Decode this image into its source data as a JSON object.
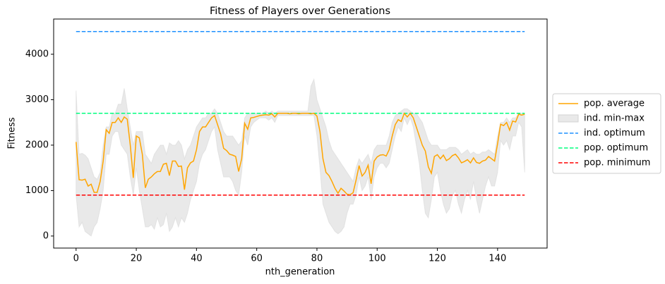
{
  "chart_data": {
    "type": "line",
    "title": "Fitness of Players over Generations",
    "x_label": "nth_generation",
    "y_label": "Fitness",
    "x": [
      0,
      1,
      2,
      3,
      4,
      5,
      6,
      7,
      8,
      9,
      10,
      11,
      12,
      13,
      14,
      15,
      16,
      17,
      18,
      19,
      20,
      21,
      22,
      23,
      24,
      25,
      26,
      27,
      28,
      29,
      30,
      31,
      32,
      33,
      34,
      35,
      36,
      37,
      38,
      39,
      40,
      41,
      42,
      43,
      44,
      45,
      46,
      47,
      48,
      49,
      50,
      51,
      52,
      53,
      54,
      55,
      56,
      57,
      58,
      59,
      60,
      61,
      62,
      63,
      64,
      65,
      66,
      67,
      68,
      69,
      70,
      71,
      72,
      73,
      74,
      75,
      76,
      77,
      78,
      79,
      80,
      81,
      82,
      83,
      84,
      85,
      86,
      87,
      88,
      89,
      90,
      91,
      92,
      93,
      94,
      95,
      96,
      97,
      98,
      99,
      100,
      101,
      102,
      103,
      104,
      105,
      106,
      107,
      108,
      109,
      110,
      111,
      112,
      113,
      114,
      115,
      116,
      117,
      118,
      119,
      120,
      121,
      122,
      123,
      124,
      125,
      126,
      127,
      128,
      129,
      130,
      131,
      132,
      133,
      134,
      135,
      136,
      137,
      138,
      139,
      140,
      141,
      142,
      143,
      144,
      145,
      146,
      147,
      148,
      149
    ],
    "series": [
      {
        "name": "pop. average",
        "kind": "line",
        "color": "#ffa500",
        "values": [
          2070,
          1240,
          1230,
          1250,
          1100,
          1140,
          960,
          960,
          1200,
          1650,
          2340,
          2260,
          2500,
          2500,
          2600,
          2500,
          2620,
          2570,
          2000,
          1280,
          2200,
          2160,
          1800,
          1060,
          1250,
          1300,
          1370,
          1420,
          1420,
          1580,
          1600,
          1330,
          1650,
          1650,
          1530,
          1540,
          1020,
          1500,
          1610,
          1650,
          1900,
          2300,
          2400,
          2400,
          2500,
          2600,
          2650,
          2450,
          2250,
          1930,
          1880,
          1800,
          1780,
          1750,
          1420,
          1700,
          2480,
          2350,
          2600,
          2610,
          2630,
          2650,
          2660,
          2670,
          2660,
          2690,
          2620,
          2700,
          2700,
          2700,
          2700,
          2690,
          2700,
          2700,
          2690,
          2700,
          2700,
          2700,
          2690,
          2700,
          2640,
          2300,
          1700,
          1400,
          1330,
          1200,
          1050,
          940,
          1050,
          990,
          920,
          910,
          950,
          1230,
          1550,
          1320,
          1400,
          1560,
          1150,
          1650,
          1740,
          1780,
          1790,
          1760,
          1900,
          2200,
          2450,
          2560,
          2520,
          2700,
          2620,
          2700,
          2600,
          2400,
          2200,
          2000,
          1870,
          1520,
          1380,
          1750,
          1790,
          1700,
          1780,
          1660,
          1700,
          1770,
          1800,
          1720,
          1610,
          1640,
          1680,
          1610,
          1720,
          1620,
          1600,
          1650,
          1670,
          1750,
          1700,
          1650,
          2030,
          2460,
          2430,
          2500,
          2330,
          2530,
          2510,
          2680,
          2660,
          2680
        ]
      },
      {
        "name": "ind. min-max",
        "kind": "band",
        "color": "#d3d3d3",
        "lower": [
          900,
          200,
          300,
          100,
          50,
          0,
          200,
          300,
          600,
          1000,
          1800,
          1800,
          2200,
          2300,
          2300,
          2000,
          1900,
          1800,
          1300,
          900,
          1500,
          1000,
          600,
          200,
          200,
          250,
          150,
          400,
          200,
          250,
          500,
          100,
          200,
          400,
          200,
          400,
          300,
          500,
          800,
          1000,
          1200,
          1600,
          1800,
          1900,
          2100,
          2300,
          2400,
          1900,
          1600,
          1300,
          1300,
          1300,
          1200,
          1000,
          900,
          1400,
          2200,
          2000,
          2400,
          2500,
          2550,
          2600,
          2600,
          2600,
          2550,
          2600,
          2500,
          2650,
          2650,
          2650,
          2650,
          2650,
          2650,
          2650,
          2650,
          2650,
          2650,
          2650,
          2650,
          2650,
          2200,
          1500,
          700,
          500,
          300,
          200,
          100,
          50,
          100,
          200,
          500,
          700,
          700,
          900,
          1300,
          1000,
          1100,
          1300,
          800,
          1300,
          1500,
          1600,
          1600,
          1500,
          1600,
          1900,
          2200,
          2400,
          2300,
          2600,
          2450,
          2600,
          2400,
          2000,
          1600,
          1000,
          500,
          400,
          800,
          1300,
          1400,
          1000,
          700,
          500,
          600,
          900,
          1000,
          700,
          500,
          800,
          1000,
          800,
          1200,
          800,
          500,
          800,
          1100,
          1300,
          1100,
          1100,
          1400,
          2100,
          2000,
          2100,
          1900,
          2200,
          2200,
          2500,
          2400,
          1400
        ],
        "upper": [
          3200,
          1800,
          1820,
          1780,
          1700,
          1500,
          1300,
          1250,
          1400,
          2000,
          2400,
          2400,
          2700,
          2700,
          2900,
          2900,
          3250,
          2800,
          2400,
          2000,
          2300,
          2300,
          2300,
          1800,
          1700,
          1600,
          1800,
          1900,
          2000,
          2000,
          1800,
          2050,
          2000,
          2000,
          2100,
          2000,
          1700,
          1900,
          2000,
          2200,
          2400,
          2500,
          2600,
          2600,
          2700,
          2700,
          2800,
          2700,
          2500,
          2300,
          2200,
          2200,
          2200,
          2100,
          2000,
          2100,
          2600,
          2700,
          2700,
          2700,
          2700,
          2700,
          2700,
          2750,
          2700,
          2750,
          2700,
          2750,
          2750,
          2750,
          2750,
          2750,
          2750,
          2750,
          2750,
          2750,
          2750,
          2750,
          3300,
          3450,
          3000,
          2800,
          2600,
          2400,
          2100,
          1900,
          1800,
          1700,
          1600,
          1500,
          1400,
          1300,
          1200,
          1500,
          1700,
          1600,
          1700,
          1800,
          1600,
          1900,
          2000,
          2000,
          2000,
          2000,
          2200,
          2500,
          2650,
          2700,
          2750,
          2800,
          2800,
          2750,
          2700,
          2700,
          2600,
          2500,
          2300,
          2100,
          2000,
          2000,
          2000,
          1900,
          1900,
          1900,
          1950,
          1950,
          1950,
          1900,
          1800,
          1850,
          1900,
          1800,
          1850,
          1800,
          1800,
          1850,
          1850,
          1900,
          1850,
          1800,
          2200,
          2500,
          2500,
          2600,
          2500,
          2600,
          2600,
          2700,
          2700,
          2700
        ]
      },
      {
        "name": "ind. optimum",
        "kind": "hline",
        "color": "#1e90ff",
        "value": 4500
      },
      {
        "name": "pop. optimum",
        "kind": "hline",
        "color": "#00ff7f",
        "value": 2700
      },
      {
        "name": "pop. minimum",
        "kind": "hline",
        "color": "#ff0000",
        "value": 900
      }
    ],
    "xlim": [
      -7.45,
      156.45
    ],
    "ylim": [
      -265,
      4775
    ],
    "xticks": [
      0,
      20,
      40,
      60,
      80,
      100,
      120,
      140
    ],
    "yticks": [
      0,
      1000,
      2000,
      3000,
      4000
    ],
    "legend": "right"
  }
}
